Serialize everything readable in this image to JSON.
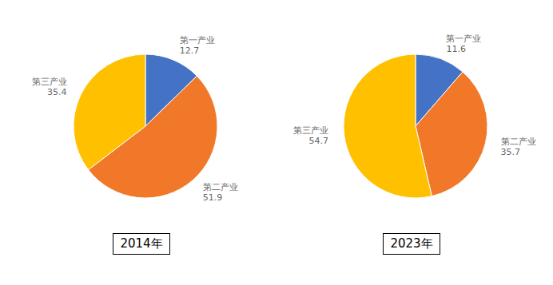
{
  "chart_data": [
    {
      "type": "pie",
      "title": "2014年",
      "categories": [
        "第一产业",
        "第二产业",
        "第三产业"
      ],
      "values": [
        12.7,
        51.9,
        35.4
      ],
      "colors": [
        "#4472C4",
        "#F07828",
        "#FFC000"
      ],
      "data_labels": true
    },
    {
      "type": "pie",
      "title": "2023年",
      "categories": [
        "第一产业",
        "第二产业",
        "第三产业"
      ],
      "values": [
        11.6,
        35.7,
        54.7
      ],
      "colors": [
        "#4472C4",
        "#F07828",
        "#FFC000"
      ],
      "data_labels": true
    }
  ]
}
